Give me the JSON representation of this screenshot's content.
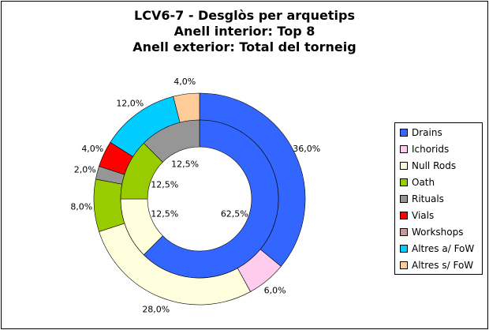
{
  "title": {
    "line1": "LCV6-7 - Desglòs per arquetips",
    "line2": "Anell interior: Top 8",
    "line3": "Anell exterior: Total del torneig"
  },
  "chart_data": {
    "type": "pie",
    "variant": "double-donut",
    "title": "LCV6-7 - Desglòs per arquetips / Anell interior: Top 8 / Anell exterior: Total del torneig",
    "categories": [
      "Drains",
      "Ichorids",
      "Null Rods",
      "Oath",
      "Rituals",
      "Vials",
      "Workshops",
      "Altres a/ FoW",
      "Altres s/ FoW"
    ],
    "colors": [
      "#3366ff",
      "#ffccee",
      "#ffffdd",
      "#99cc00",
      "#969696",
      "#ff0000",
      "#cc9999",
      "#00ccff",
      "#ffcc99"
    ],
    "series": [
      {
        "name": "Anell interior: Top 8",
        "values": [
          62.5,
          0,
          12.5,
          12.5,
          12.5,
          0,
          0,
          0,
          0
        ],
        "labels": [
          "62,5%",
          "",
          "12,5%",
          "12,5%",
          "12,5%",
          "",
          "",
          "",
          ""
        ]
      },
      {
        "name": "Anell exterior: Total del torneig",
        "values": [
          36.0,
          6.0,
          28.0,
          8.0,
          2.0,
          4.0,
          0,
          12.0,
          4.0
        ],
        "labels": [
          "36,0%",
          "6,0%",
          "28,0%",
          "8,0%",
          "2,0%",
          "4,0%",
          "",
          "12,0%",
          "4,0%"
        ]
      }
    ],
    "legend_position": "right"
  }
}
